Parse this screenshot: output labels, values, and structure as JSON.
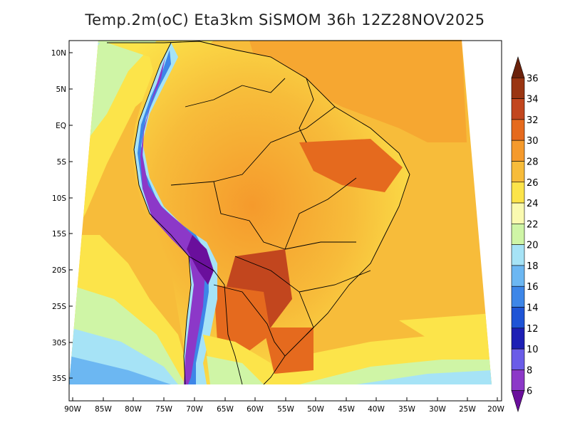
{
  "map": {
    "title": "Temp.2m(oC) Eta3km SiSMOM 36h 12Z28NOV2025",
    "variable": "Temperature at 2 m",
    "units": "oC",
    "model": "Eta3km",
    "forecast_hour": "36h",
    "valid_time": "12Z28NOV2025",
    "lat_labels": [
      "10N",
      "5N",
      "EQ",
      "5S",
      "10S",
      "15S",
      "20S",
      "25S",
      "30S",
      "35S"
    ],
    "lon_labels": [
      "90W",
      "85W",
      "80W",
      "75W",
      "70W",
      "65W",
      "60W",
      "55W",
      "50W",
      "45W",
      "40W",
      "35W",
      "30W",
      "25W",
      "20W"
    ]
  },
  "colorbar": {
    "levels": [
      "6",
      "8",
      "10",
      "12",
      "14",
      "16",
      "18",
      "20",
      "22",
      "24",
      "26",
      "28",
      "30",
      "32",
      "34",
      "36"
    ],
    "colors": [
      "#6a0f9c",
      "#8c38c8",
      "#6a5ce8",
      "#1d1fb5",
      "#1e54d6",
      "#3d86e8",
      "#6cb7f2",
      "#a6e3f6",
      "#cff5a6",
      "#fafab0",
      "#fce44a",
      "#f7bc3a",
      "#f59a2c",
      "#e56a1e",
      "#c2461e",
      "#9a3512",
      "#6b220c"
    ]
  }
}
